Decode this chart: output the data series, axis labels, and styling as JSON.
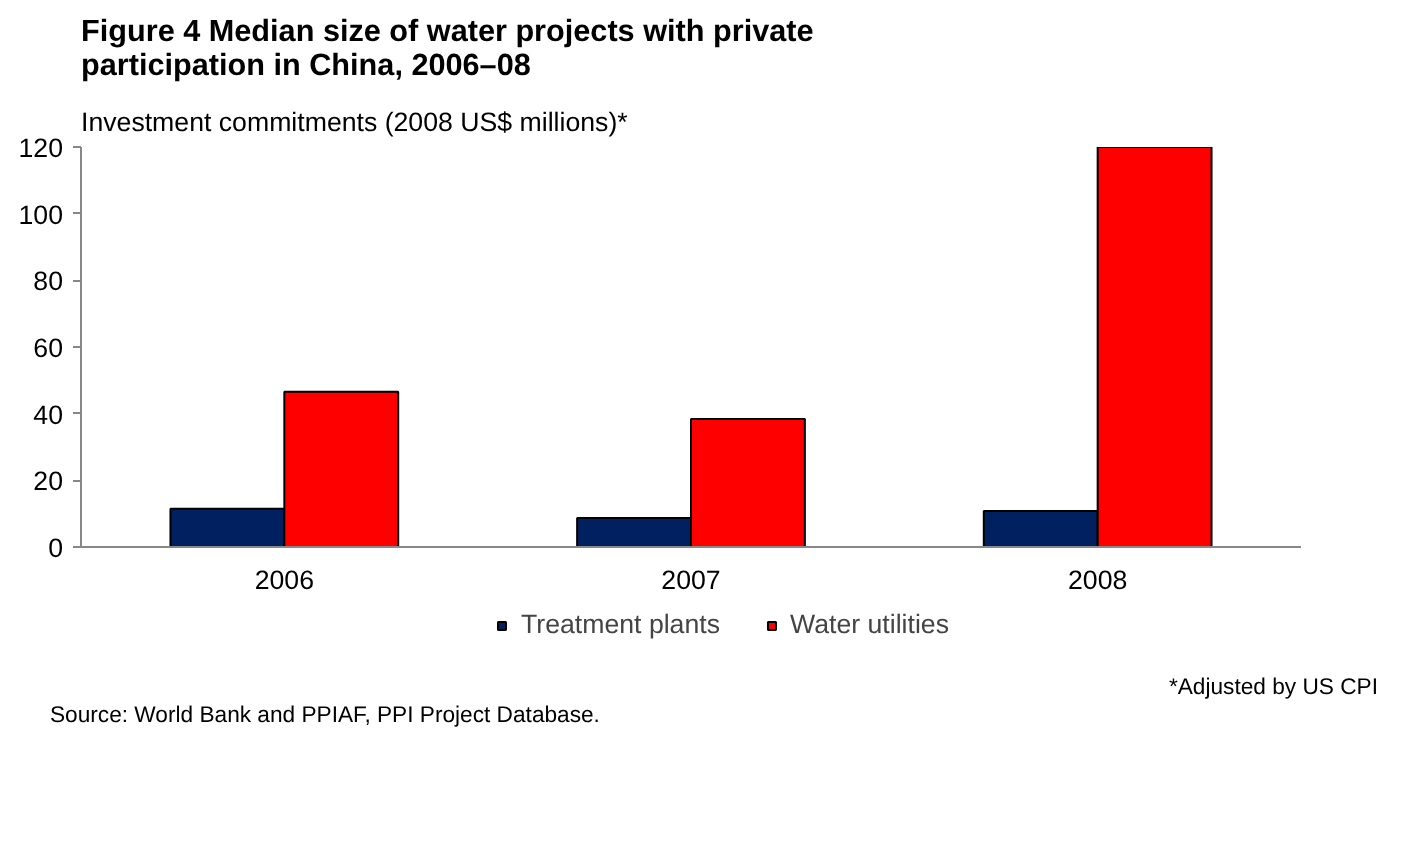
{
  "chart_data": {
    "type": "bar",
    "title": "Figure 4 Median size of water projects with private\nparticipation in China, 2006–08",
    "ylabel": "Investment commitments (2008  US$ millions)*",
    "categories": [
      "2006",
      "2007",
      "2008"
    ],
    "series": [
      {
        "name": "Treatment plants",
        "color": "#002060",
        "values": [
          11.5,
          8.7,
          10.8
        ]
      },
      {
        "name": "Water utilities",
        "color": "#ff0000",
        "values": [
          46.6,
          38.4,
          120
        ]
      }
    ],
    "ylim": [
      0,
      120
    ],
    "yticks": [
      0,
      20,
      40,
      60,
      80,
      100,
      120
    ],
    "legend": "bottom",
    "annotations": [
      "*Adjusted by  US CPI",
      "Source: World Bank and PPIAF,  PPI Project Database."
    ]
  }
}
